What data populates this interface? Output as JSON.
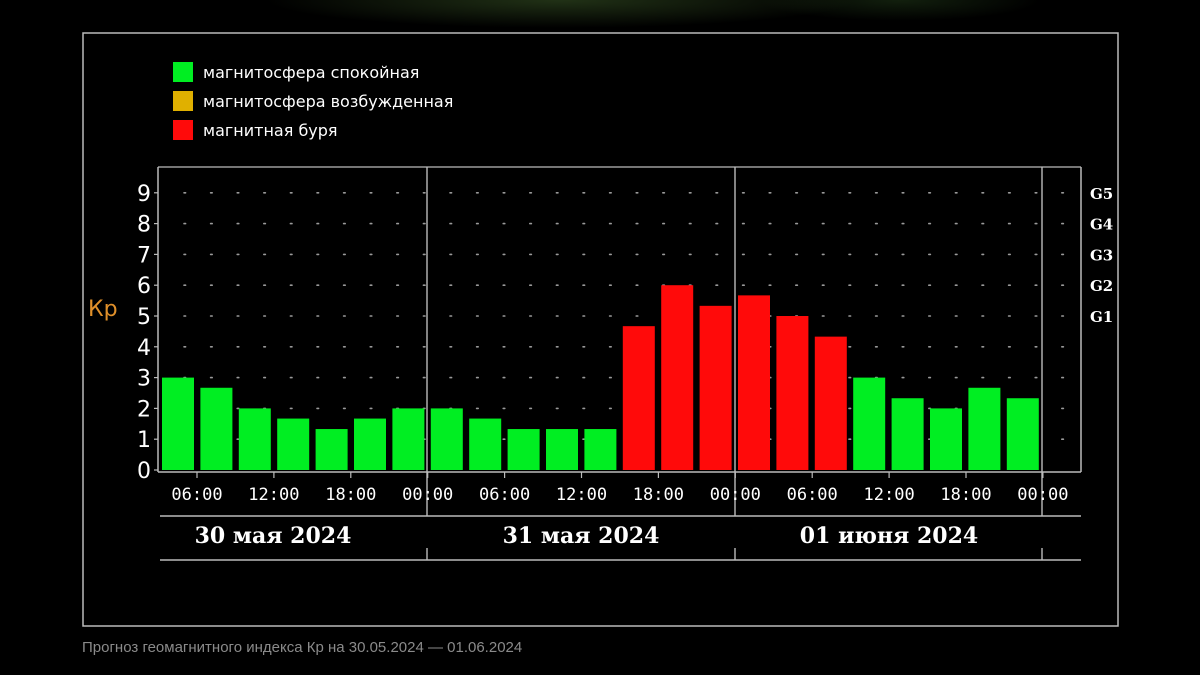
{
  "caption": "Прогноз геомагнитного индекса Кр на 30.05.2024 — 01.06.2024",
  "colors": {
    "quiet": "#00ee22",
    "excited": "#e0b000",
    "storm": "#ff0a0a",
    "axis_text": "#ffffff",
    "kp_label": "#e0902a",
    "frame": "#bbbbbb"
  },
  "chart_data": {
    "type": "bar",
    "ylabel": "Кр",
    "ylim": [
      0,
      9
    ],
    "y_ticks": [
      "0",
      "1",
      "2",
      "3",
      "4",
      "5",
      "6",
      "7",
      "8",
      "9"
    ],
    "g_scale": [
      {
        "label": "G1",
        "kp": 5
      },
      {
        "label": "G2",
        "kp": 6
      },
      {
        "label": "G3",
        "kp": 7
      },
      {
        "label": "G4",
        "kp": 8
      },
      {
        "label": "G5",
        "kp": 9
      }
    ],
    "legend": [
      {
        "label": "магнитосфера спокойная",
        "color": "#00ee22"
      },
      {
        "label": "магнитосфера возбужденная",
        "color": "#e0b000"
      },
      {
        "label": "магнитная буря",
        "color": "#ff0a0a"
      }
    ],
    "legend_position": "top-left",
    "grid": true,
    "x_tick_labels": [
      "06:00",
      "12:00",
      "18:00",
      "00:00",
      "06:00",
      "12:00",
      "18:00",
      "00:00",
      "06:00",
      "12:00",
      "18:00",
      "00:00"
    ],
    "days": [
      "30 мая 2024",
      "31 мая 2024",
      "01 июня 2024"
    ],
    "values": [
      3.0,
      2.67,
      2.0,
      1.67,
      1.33,
      1.67,
      2.0,
      2.0,
      1.67,
      1.33,
      1.33,
      1.33,
      4.67,
      6.0,
      5.33,
      5.67,
      5.0,
      4.33,
      3.0,
      2.33,
      2.0,
      2.67,
      2.33
    ],
    "levels": [
      "quiet",
      "quiet",
      "quiet",
      "quiet",
      "quiet",
      "quiet",
      "quiet",
      "quiet",
      "quiet",
      "quiet",
      "quiet",
      "quiet",
      "storm",
      "storm",
      "storm",
      "storm",
      "storm",
      "storm",
      "quiet",
      "quiet",
      "quiet",
      "quiet",
      "quiet"
    ]
  }
}
